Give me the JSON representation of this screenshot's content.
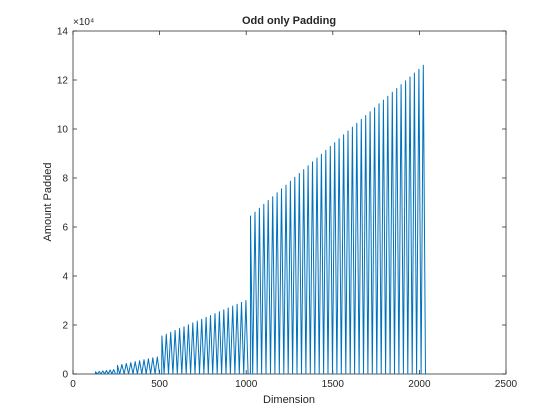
{
  "chart_data": {
    "type": "line",
    "title": "Odd only Padding",
    "xlabel": "Dimension",
    "ylabel": "Amount Padded",
    "xlim": [
      0,
      2500
    ],
    "ylim": [
      0,
      140000
    ],
    "x_ticks": [
      0,
      500,
      1000,
      1500,
      2000,
      2500
    ],
    "y_ticks": [
      0,
      2,
      4,
      6,
      8,
      10,
      12,
      14
    ],
    "y_exponent_label": "×10⁴",
    "grid": false,
    "series_color": "#0072BD",
    "segments": [
      {
        "x_start": 130,
        "x_end": 256,
        "peak_start": 900,
        "peak_end": 1800
      },
      {
        "x_start": 257,
        "x_end": 512,
        "peak_start": 3500,
        "peak_end": 7000
      },
      {
        "x_start": 513,
        "x_end": 1024,
        "peak_start": 15500,
        "peak_end": 30000
      },
      {
        "x_start": 1025,
        "x_end": 2048,
        "peak_start": 64500,
        "peak_end": 126000
      }
    ],
    "x_end": 2048
  }
}
